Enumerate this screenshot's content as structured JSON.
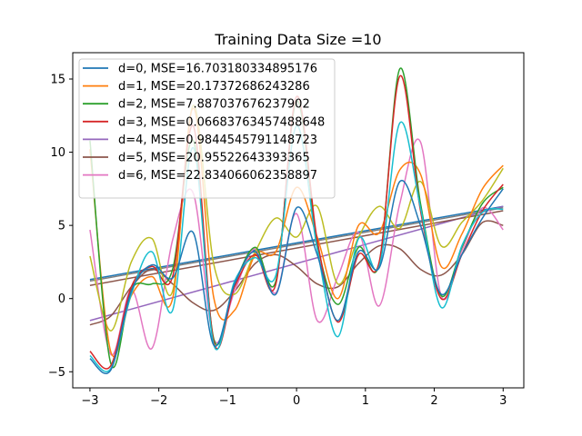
{
  "chart_data": {
    "type": "line",
    "title": "Training Data Size =10",
    "xlabel": "",
    "ylabel": "",
    "xlim": [
      -3.25,
      3.3
    ],
    "ylim": [
      -6.1,
      16.8
    ],
    "xticks": [
      -3,
      -2,
      -1,
      0,
      1,
      2,
      3
    ],
    "xtick_labels": [
      "−3",
      "−2",
      "−1",
      "0",
      "1",
      "2",
      "3"
    ],
    "yticks": [
      -5,
      0,
      5,
      10,
      15
    ],
    "ytick_labels": [
      "−5",
      "0",
      "5",
      "10",
      "15"
    ],
    "grid": false,
    "legend_position": "top-left",
    "legend": [
      {
        "label": "d=0, MSE=16.703180334895176",
        "color": "#1f77b4"
      },
      {
        "label": "d=1, MSE=20.17372686243286",
        "color": "#ff7f0e"
      },
      {
        "label": "d=2, MSE=7.887037676237902",
        "color": "#2ca02c"
      },
      {
        "label": "d=3, MSE=0.06683763457488648",
        "color": "#d62728"
      },
      {
        "label": "d=4, MSE=0.9844545791148723",
        "color": "#9467bd"
      },
      {
        "label": "d=5, MSE=20.95522643393365",
        "color": "#8c564b"
      },
      {
        "label": "d=6, MSE=22.834066062358897",
        "color": "#e377c2"
      }
    ],
    "series": [
      {
        "color": "#1f77b4",
        "x": [
          -3,
          3
        ],
        "y": [
          1.3,
          6.3
        ]
      },
      {
        "color": "#9467bd",
        "x": [
          -3,
          3
        ],
        "y": [
          -1.5,
          6.3
        ]
      },
      {
        "color": "#8c564b",
        "x": [
          -3,
          3
        ],
        "y": [
          0.9,
          6.0
        ]
      },
      {
        "color": "#7f7f7f",
        "x": [
          -3,
          3
        ],
        "y": [
          1.2,
          6.2
        ]
      },
      {
        "color": "#8c564b",
        "x": [
          -3,
          -2.7,
          -2.4,
          -2.1,
          -1.8,
          -1.5,
          -1.2,
          -0.9,
          -0.6,
          -0.3,
          0,
          0.3,
          0.6,
          0.9,
          1.2,
          1.5,
          1.8,
          2.1,
          2.4,
          2.7,
          3
        ],
        "y": [
          -1.8,
          -1.2,
          0.8,
          2.0,
          1.0,
          -0.3,
          -0.8,
          0.5,
          2.4,
          3.0,
          2.2,
          1.0,
          0.8,
          2.4,
          3.6,
          3.4,
          2.0,
          1.6,
          3.0,
          5.2,
          5.0
        ]
      },
      {
        "color": "#e377c2",
        "x": [
          -3,
          -2.7,
          -2.4,
          -2.1,
          -1.8,
          -1.5,
          -1.2,
          -0.9,
          -0.6,
          -0.3,
          0,
          0.3,
          0.6,
          0.9,
          1.2,
          1.5,
          1.8,
          2.1,
          2.4,
          2.7,
          3
        ],
        "y": [
          4.7,
          -3.8,
          0.6,
          -3.4,
          4.0,
          7.2,
          -2.8,
          0.5,
          3.4,
          0.4,
          5.8,
          -1.5,
          1.5,
          4.5,
          -0.5,
          6.5,
          10.7,
          0.2,
          3.3,
          6.2,
          4.7
        ]
      },
      {
        "color": "#bcbd22",
        "x": [
          -3,
          -2.7,
          -2.4,
          -2.1,
          -1.8,
          -1.5,
          -1.2,
          -0.9,
          -0.6,
          -0.3,
          0,
          0.3,
          0.6,
          0.9,
          1.2,
          1.5,
          1.8,
          2.1,
          2.4,
          2.7,
          3
        ],
        "y": [
          2.9,
          -2.2,
          2.5,
          4.1,
          0.5,
          13.2,
          2.3,
          0.3,
          3.2,
          5.5,
          4.2,
          6.3,
          1.0,
          4.2,
          6.3,
          4.8,
          8.0,
          3.6,
          5.2,
          6.7,
          8.9
        ]
      },
      {
        "color": "#ff7f0e",
        "x": [
          -3,
          -2.7,
          -2.4,
          -2.1,
          -1.8,
          -1.5,
          -1.2,
          -0.9,
          -0.6,
          -0.3,
          0,
          0.3,
          0.6,
          0.9,
          1.2,
          1.5,
          1.8,
          2.1,
          2.4,
          2.7,
          3
        ],
        "y": [
          10.2,
          -3.6,
          0.2,
          1.5,
          0.0,
          13.0,
          0.0,
          -0.8,
          3.0,
          3.2,
          7.6,
          4.2,
          0.0,
          5.0,
          4.5,
          8.8,
          8.5,
          2.2,
          4.4,
          7.5,
          9.1
        ]
      },
      {
        "color": "#2ca02c",
        "x": [
          -3,
          -2.7,
          -2.4,
          -2.1,
          -1.8,
          -1.5,
          -1.2,
          -0.9,
          -0.6,
          -0.3,
          0,
          0.3,
          0.6,
          0.9,
          1.2,
          1.5,
          1.8,
          2.1,
          2.4,
          2.7,
          3
        ],
        "y": [
          10.8,
          -4.4,
          0.6,
          1.0,
          2.0,
          10.8,
          -2.8,
          1.0,
          3.5,
          1.2,
          13.5,
          3.8,
          -0.4,
          3.5,
          2.4,
          15.7,
          6.5,
          0.2,
          3.5,
          6.5,
          7.6
        ]
      },
      {
        "color": "#d62728",
        "x": [
          -3,
          -2.7,
          -2.4,
          -2.1,
          -1.8,
          -1.5,
          -1.2,
          -0.9,
          -0.6,
          -0.3,
          0,
          0.3,
          0.6,
          0.9,
          1.2,
          1.5,
          1.8,
          2.1,
          2.4,
          2.7,
          3
        ],
        "y": [
          -3.6,
          -4.6,
          0.8,
          2.2,
          1.5,
          11.8,
          -3.0,
          0.8,
          3.0,
          1.0,
          13.8,
          4.0,
          -1.6,
          3.0,
          2.5,
          15.2,
          6.0,
          0.0,
          3.0,
          6.0,
          7.8
        ]
      },
      {
        "color": "#17becf",
        "x": [
          -3,
          -2.7,
          -2.4,
          -2.1,
          -1.8,
          -1.5,
          -1.2,
          -0.9,
          -0.6,
          -0.3,
          0,
          0.3,
          0.6,
          0.9,
          1.2,
          1.5,
          1.8,
          2.1,
          2.4,
          2.7,
          3
        ],
        "y": [
          -3.9,
          -4.8,
          0.3,
          3.2,
          -0.8,
          10.3,
          -3.2,
          1.2,
          2.8,
          1.6,
          11.8,
          3.4,
          -2.6,
          4.1,
          2.2,
          12.0,
          6.2,
          -0.6,
          3.6,
          5.9,
          6.1
        ]
      },
      {
        "color": "#1f77b4",
        "x": [
          -3,
          -2.7,
          -2.4,
          -2.1,
          -1.8,
          -1.5,
          -1.2,
          -0.9,
          -0.6,
          -0.3,
          0,
          0.3,
          0.6,
          0.9,
          1.2,
          1.5,
          1.8,
          2.1,
          2.4,
          2.7,
          3
        ],
        "y": [
          -4.1,
          -4.9,
          0.5,
          2.3,
          1.4,
          4.5,
          -3.2,
          1.0,
          3.2,
          0.3,
          6.2,
          3.0,
          -1.5,
          3.2,
          2.1,
          8.0,
          5.0,
          0.3,
          3.0,
          5.5,
          7.5
        ]
      }
    ]
  }
}
